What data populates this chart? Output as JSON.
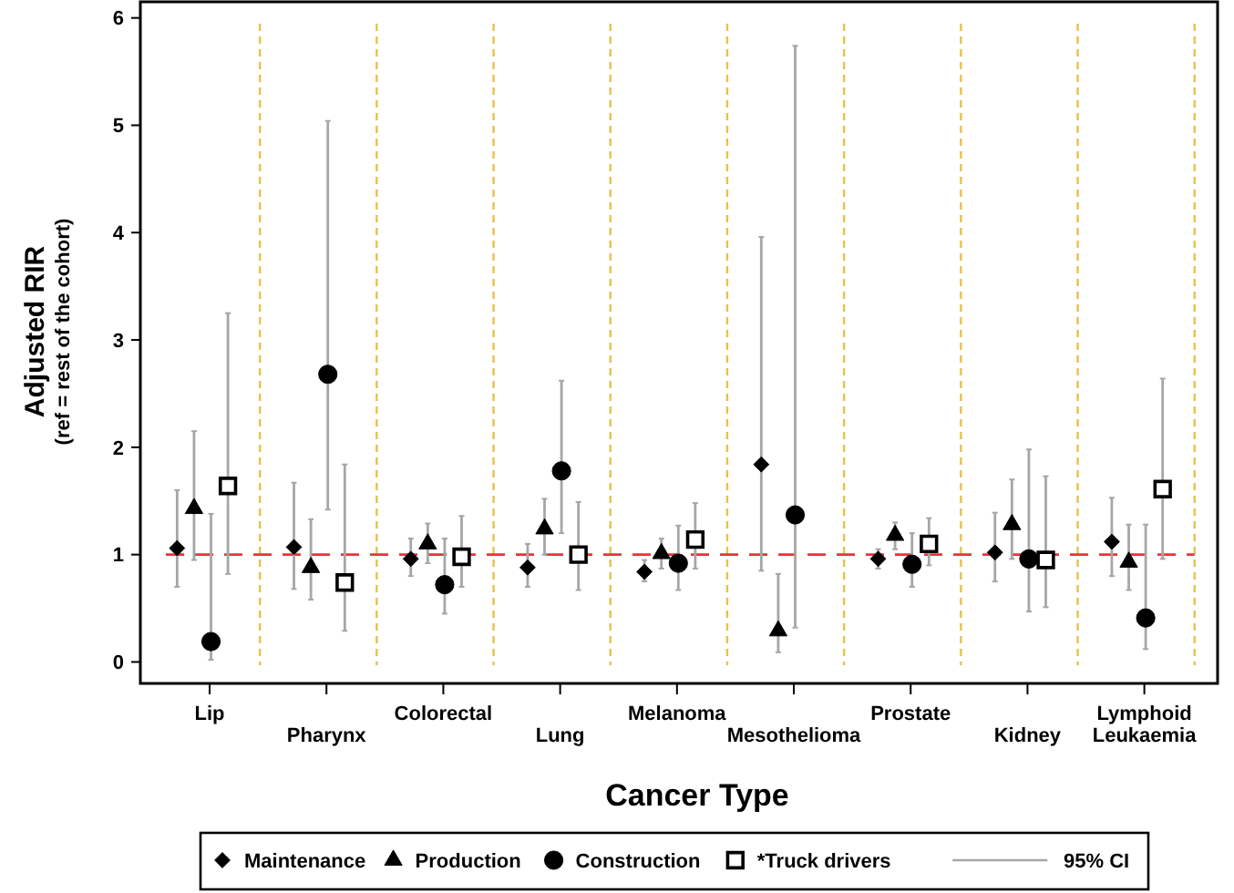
{
  "chart_data": {
    "type": "scatter",
    "xlabel": "Cancer Type",
    "ylabel": "Adjusted RIR\n(ref = rest of the cohort)",
    "categories": [
      "Lip",
      "Pharynx",
      "Colorectal",
      "Lung",
      "Melanoma",
      "Mesothelioma",
      "Prostate",
      "Kidney",
      "Lymphoid Leukaemia"
    ],
    "ylim": [
      -0.2,
      6.15
    ],
    "yticks": [
      0,
      1,
      2,
      3,
      4,
      5,
      6
    ],
    "legend": "bottom",
    "series": [
      {
        "name": "Maintenance",
        "color": "#000000",
        "marker": "diamond",
        "values": [
          1.06,
          1.07,
          0.96,
          0.88,
          0.84,
          1.84,
          0.96,
          1.02,
          1.12
        ],
        "errors": [
          [
            0.7,
            1.6
          ],
          [
            0.68,
            1.67
          ],
          [
            0.8,
            1.15
          ],
          [
            0.7,
            1.1
          ],
          [
            0.75,
            0.95
          ],
          [
            0.85,
            3.96
          ],
          [
            0.87,
            1.05
          ],
          [
            0.75,
            1.39
          ],
          [
            0.8,
            1.53
          ]
        ]
      },
      {
        "name": "Production",
        "color": "#000000",
        "marker": "triangle",
        "values": [
          1.43,
          0.88,
          1.1,
          1.24,
          1.01,
          0.29,
          1.18,
          1.28,
          0.93
        ],
        "errors": [
          [
            0.95,
            2.15
          ],
          [
            0.58,
            1.33
          ],
          [
            0.92,
            1.29
          ],
          [
            1.0,
            1.52
          ],
          [
            0.87,
            1.15
          ],
          [
            0.09,
            0.82
          ],
          [
            1.05,
            1.3
          ],
          [
            0.96,
            1.7
          ],
          [
            0.67,
            1.28
          ]
        ]
      },
      {
        "name": "Construction",
        "color": "#000000",
        "marker": "circle",
        "values": [
          0.19,
          2.68,
          0.72,
          1.78,
          0.92,
          1.37,
          0.91,
          0.96,
          0.41
        ],
        "errors": [
          [
            0.02,
            1.38
          ],
          [
            1.42,
            5.04
          ],
          [
            0.45,
            1.15
          ],
          [
            1.2,
            2.62
          ],
          [
            0.67,
            1.27
          ],
          [
            0.32,
            5.74
          ],
          [
            0.7,
            1.2
          ],
          [
            0.47,
            1.98
          ],
          [
            0.12,
            1.28
          ]
        ]
      },
      {
        "name": "*Truck drivers",
        "color": "#000000",
        "marker": "square",
        "values": [
          1.64,
          0.74,
          0.98,
          1.0,
          1.14,
          null,
          1.1,
          0.95,
          1.61
        ],
        "errors": [
          [
            0.82,
            3.25
          ],
          [
            0.29,
            1.84
          ],
          [
            0.7,
            1.36
          ],
          [
            0.67,
            1.49
          ],
          [
            0.87,
            1.48
          ],
          null,
          [
            0.9,
            1.34
          ],
          [
            0.51,
            1.73
          ],
          [
            0.96,
            2.64
          ]
        ]
      }
    ],
    "ref_lines": [
      {
        "axis": "y",
        "value": 1,
        "color": "#e8343a",
        "line_style": "dashed"
      },
      {
        "axis": "x",
        "value": "Lip",
        "color": "#e8c14a",
        "line_style": "dashed"
      },
      {
        "axis": "x",
        "value": "Pharynx",
        "color": "#e8c14a",
        "line_style": "dashed"
      },
      {
        "axis": "x",
        "value": "Colorectal",
        "color": "#e8c14a",
        "line_style": "dashed"
      },
      {
        "axis": "x",
        "value": "Lung",
        "color": "#e8c14a",
        "line_style": "dashed"
      },
      {
        "axis": "x",
        "value": "Melanoma",
        "color": "#e8c14a",
        "line_style": "dashed"
      },
      {
        "axis": "x",
        "value": "Mesothelioma",
        "color": "#e8c14a",
        "line_style": "dashed"
      },
      {
        "axis": "x",
        "value": "Prostate",
        "color": "#e8c14a",
        "line_style": "dashed"
      },
      {
        "axis": "x",
        "value": "Kidney",
        "color": "#e8c14a",
        "line_style": "dashed"
      },
      {
        "axis": "x",
        "value": "Lymphoid Leukaemia",
        "color": "#e8c14a",
        "line_style": "dashed"
      }
    ],
    "annotations": [
      "95% CI"
    ]
  }
}
